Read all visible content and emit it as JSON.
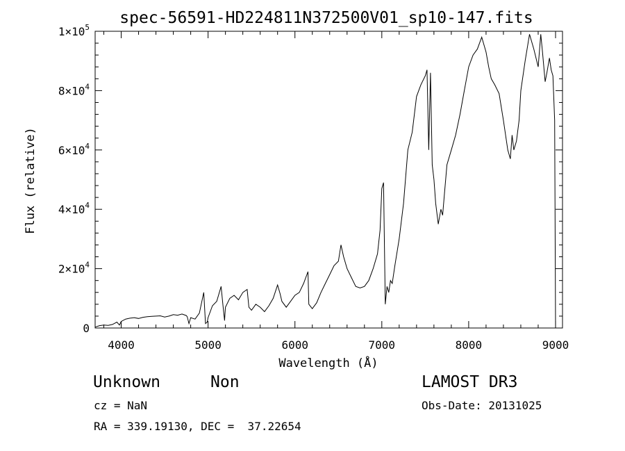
{
  "chart_data": {
    "type": "line",
    "title": "spec-56591-HD224811N372500V01_sp10-147.fits",
    "xlabel": "Wavelength (Å)",
    "ylabel": "Flux (relative)",
    "xlim": [
      3700,
      9080
    ],
    "ylim": [
      0,
      100000
    ],
    "x_ticks": [
      4000,
      5000,
      6000,
      7000,
      8000,
      9000
    ],
    "y_ticks": [
      {
        "value": 0,
        "mantissa": "0",
        "exponent": ""
      },
      {
        "value": 20000,
        "mantissa": "2×10",
        "exponent": "4"
      },
      {
        "value": 40000,
        "mantissa": "4×10",
        "exponent": "4"
      },
      {
        "value": 60000,
        "mantissa": "6×10",
        "exponent": "4"
      },
      {
        "value": 80000,
        "mantissa": "8×10",
        "exponent": "4"
      },
      {
        "value": 100000,
        "mantissa": "1×10",
        "exponent": "5"
      }
    ],
    "grid": false,
    "series": [
      {
        "x": [
          3700,
          3750,
          3800,
          3850,
          3900,
          3950,
          3980,
          4000,
          4050,
          4100,
          4150,
          4200,
          4250,
          4300,
          4350,
          4400,
          4450,
          4500,
          4550,
          4600,
          4650,
          4700,
          4750,
          4760,
          4780,
          4800,
          4850,
          4900,
          4950,
          4970,
          4990,
          5000,
          5050,
          5100,
          5150,
          5170,
          5190,
          5200,
          5250,
          5300,
          5350,
          5400,
          5450,
          5470,
          5500,
          5550,
          5600,
          5650,
          5700,
          5750,
          5800,
          5830,
          5850,
          5900,
          5950,
          6000,
          6050,
          6100,
          6150,
          6160,
          6200,
          6250,
          6300,
          6350,
          6400,
          6450,
          6500,
          6530,
          6560,
          6600,
          6650,
          6700,
          6750,
          6800,
          6850,
          6900,
          6950,
          6980,
          7000,
          7020,
          7040,
          7060,
          7080,
          7100,
          7120,
          7150,
          7200,
          7250,
          7300,
          7350,
          7400,
          7450,
          7500,
          7520,
          7540,
          7560,
          7580,
          7600,
          7620,
          7650,
          7680,
          7700,
          7720,
          7750,
          7800,
          7850,
          7900,
          7950,
          8000,
          8050,
          8100,
          8150,
          8200,
          8230,
          8260,
          8300,
          8350,
          8400,
          8450,
          8480,
          8500,
          8520,
          8550,
          8580,
          8600,
          8650,
          8700,
          8750,
          8800,
          8830,
          8850,
          8880,
          8900,
          8930,
          8950,
          8970,
          8990,
          9000
        ],
        "y": [
          300,
          800,
          1000,
          900,
          1200,
          2000,
          1000,
          2200,
          3000,
          3300,
          3500,
          3200,
          3600,
          3800,
          3900,
          4000,
          4100,
          3700,
          4000,
          4500,
          4300,
          4700,
          4200,
          3800,
          1500,
          3500,
          3000,
          5000,
          12000,
          1500,
          2000,
          3500,
          7500,
          9000,
          14000,
          8000,
          2500,
          7000,
          10000,
          11000,
          9500,
          12000,
          13000,
          7000,
          6000,
          8000,
          7000,
          5500,
          7500,
          10000,
          14500,
          11500,
          9000,
          7000,
          9000,
          11000,
          12000,
          15000,
          19000,
          8000,
          6500,
          8500,
          12000,
          15000,
          18000,
          21000,
          22500,
          28000,
          24000,
          20000,
          17000,
          14000,
          13500,
          14000,
          16000,
          20000,
          25000,
          33000,
          47000,
          49000,
          8000,
          14000,
          12000,
          16000,
          15000,
          21000,
          30000,
          42000,
          60000,
          66000,
          78000,
          82000,
          85000,
          87000,
          60000,
          86000,
          55000,
          50000,
          42000,
          35000,
          40000,
          38000,
          45000,
          55000,
          60000,
          65000,
          72000,
          80000,
          88000,
          92000,
          94000,
          98000,
          93000,
          88000,
          84000,
          82000,
          79000,
          70000,
          60000,
          57000,
          65000,
          60000,
          63000,
          70000,
          80000,
          90000,
          99000,
          94000,
          88000,
          99000,
          93000,
          83000,
          86000,
          91000,
          87000,
          85000,
          70000,
          0
        ]
      }
    ]
  },
  "info": {
    "object_class": "Unknown",
    "object_subclass": "Non",
    "redshift": "cz = NaN",
    "coordinates": "RA = 339.19130, DEC =  37.22654",
    "survey": "LAMOST DR3",
    "obs_date": "Obs-Date: 20131025"
  }
}
